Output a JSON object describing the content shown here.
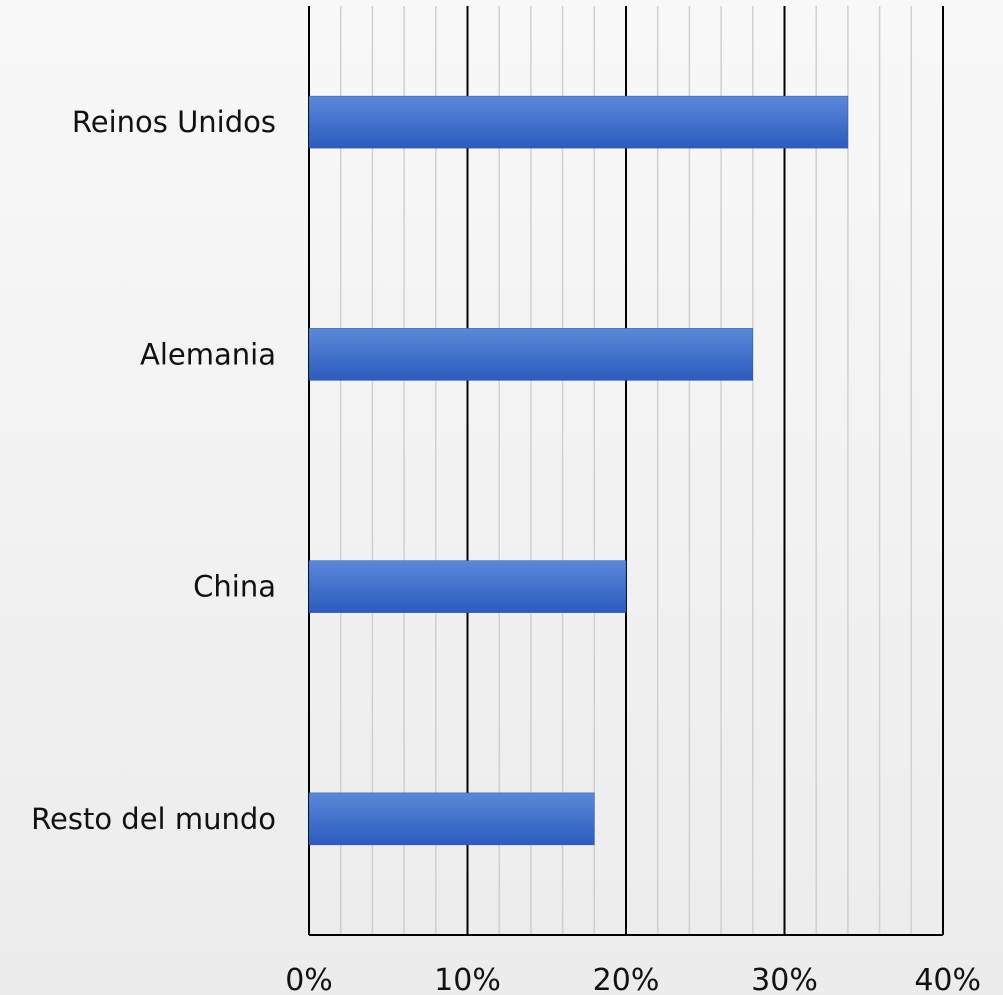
{
  "chart_data": {
    "type": "bar",
    "orientation": "horizontal",
    "categories": [
      "Reinos Unidos",
      "Alemania",
      "China",
      "Resto del mundo"
    ],
    "values": [
      34,
      28,
      20,
      18
    ],
    "xlim": [
      0,
      40
    ],
    "xticks": [
      "0%",
      "10%",
      "20%",
      "30%",
      "40%"
    ],
    "x_major_step": 10,
    "x_minor_step": 2,
    "grid": true,
    "bar_color": "#3a6cc9",
    "bar_color_light": "#5b88d8",
    "bar_color_dark": "#2b5cbf",
    "gridline_major_color": "#000000",
    "gridline_minor_color": "#d0d0d0",
    "title": "",
    "xlabel": "",
    "ylabel": ""
  }
}
